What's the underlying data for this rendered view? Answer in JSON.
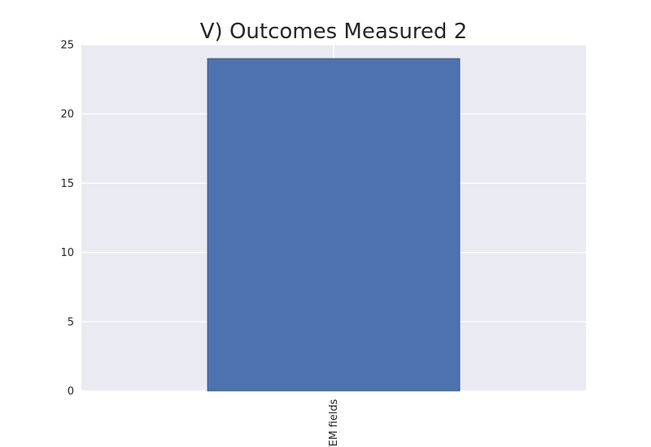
{
  "chart_data": {
    "type": "bar",
    "title": "V) Outcomes Measured 2",
    "xlabel": "",
    "ylabel": "",
    "categories": [
      "STEM fields"
    ],
    "values": [
      24
    ],
    "ylim": [
      0,
      25
    ],
    "yticks": [
      0,
      5,
      10,
      15,
      20,
      25
    ],
    "grid": true,
    "legend": "none",
    "bar_color": "#4c72b0",
    "bar_edge_color": "#3f4f66",
    "plot_background": "#eaeaf2",
    "grid_color": "#ffffff"
  }
}
